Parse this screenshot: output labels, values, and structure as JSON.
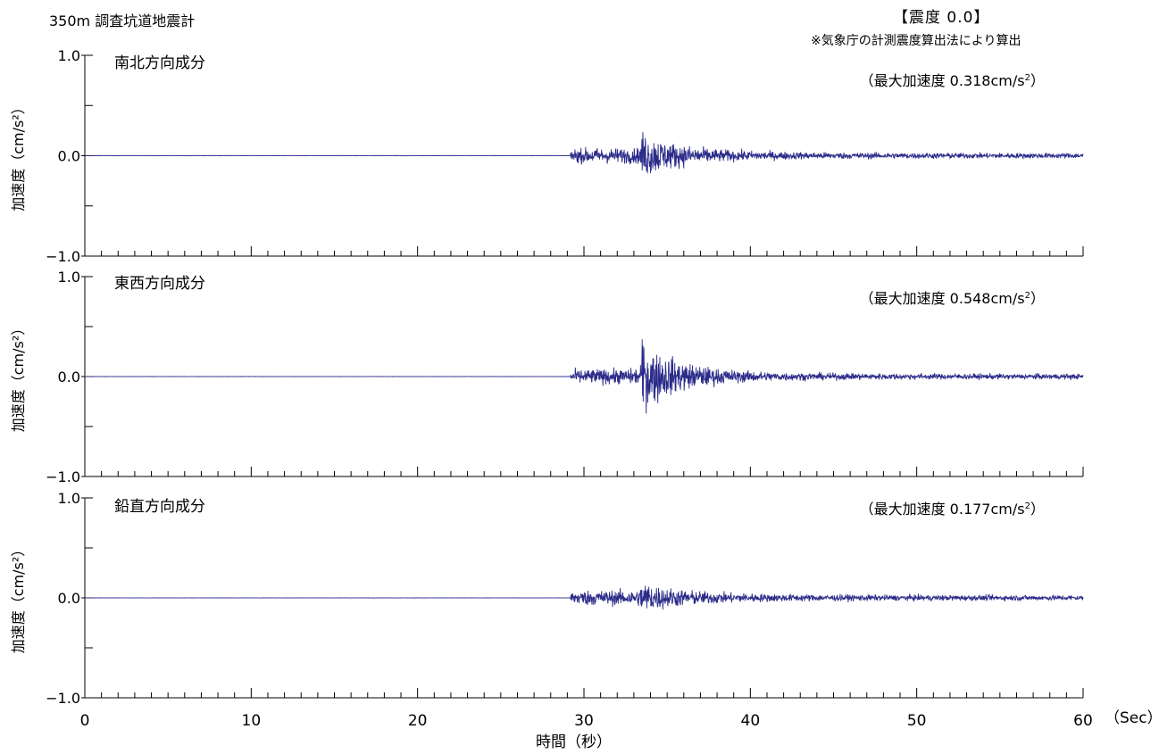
{
  "header": {
    "station": "350m 調査坑道地震計",
    "intensity_label": "【震度 0.0】",
    "intensity_note": "※気象庁の計測震度算出法により算出"
  },
  "chart_data": [
    {
      "type": "line",
      "component": "南北方向成分",
      "peak_prefix": "（最大加速度 0.318cm/s",
      "peak_exp": "2",
      "peak_suffix": "）",
      "peak_value": 0.318,
      "ylabel": "加速度（cm/s²）",
      "ylim": [
        -1.0,
        1.0
      ],
      "yticks": [
        "1.0",
        "0.0",
        "−1.0"
      ],
      "xlim": [
        0,
        60
      ],
      "series": [
        {
          "color": "#2b2b8a",
          "signal_onset": 29.2,
          "max_value": 0.318,
          "min_value": -0.4
        }
      ]
    },
    {
      "type": "line",
      "component": "東西方向成分",
      "peak_prefix": "（最大加速度 0.548cm/s",
      "peak_exp": "2",
      "peak_suffix": "）",
      "peak_value": 0.548,
      "ylabel": "加速度（cm/s²）",
      "ylim": [
        -1.0,
        1.0
      ],
      "yticks": [
        "1.0",
        "0.0",
        "−1.0"
      ],
      "xlim": [
        0,
        60
      ],
      "series": [
        {
          "color": "#2b2b8a",
          "signal_onset": 29.2,
          "max_value": 0.548,
          "min_value": -0.37
        }
      ]
    },
    {
      "type": "line",
      "component": "鉛直方向成分",
      "peak_prefix": "（最大加速度 0.177cm/s",
      "peak_exp": "2",
      "peak_suffix": "）",
      "peak_value": 0.177,
      "ylabel": "加速度（cm/s²）",
      "ylim": [
        -1.0,
        1.0
      ],
      "yticks": [
        "1.0",
        "0.0",
        "−1.0"
      ],
      "xlim": [
        0,
        60
      ],
      "series": [
        {
          "color": "#2b2b8a",
          "signal_onset": 29.2,
          "max_value": 0.177,
          "min_value": -0.2
        }
      ]
    }
  ],
  "x_axis": {
    "ticks": [
      "0",
      "10",
      "20",
      "30",
      "40",
      "50",
      "60"
    ],
    "unit": "（Sec）",
    "label": "時間（秒）"
  }
}
